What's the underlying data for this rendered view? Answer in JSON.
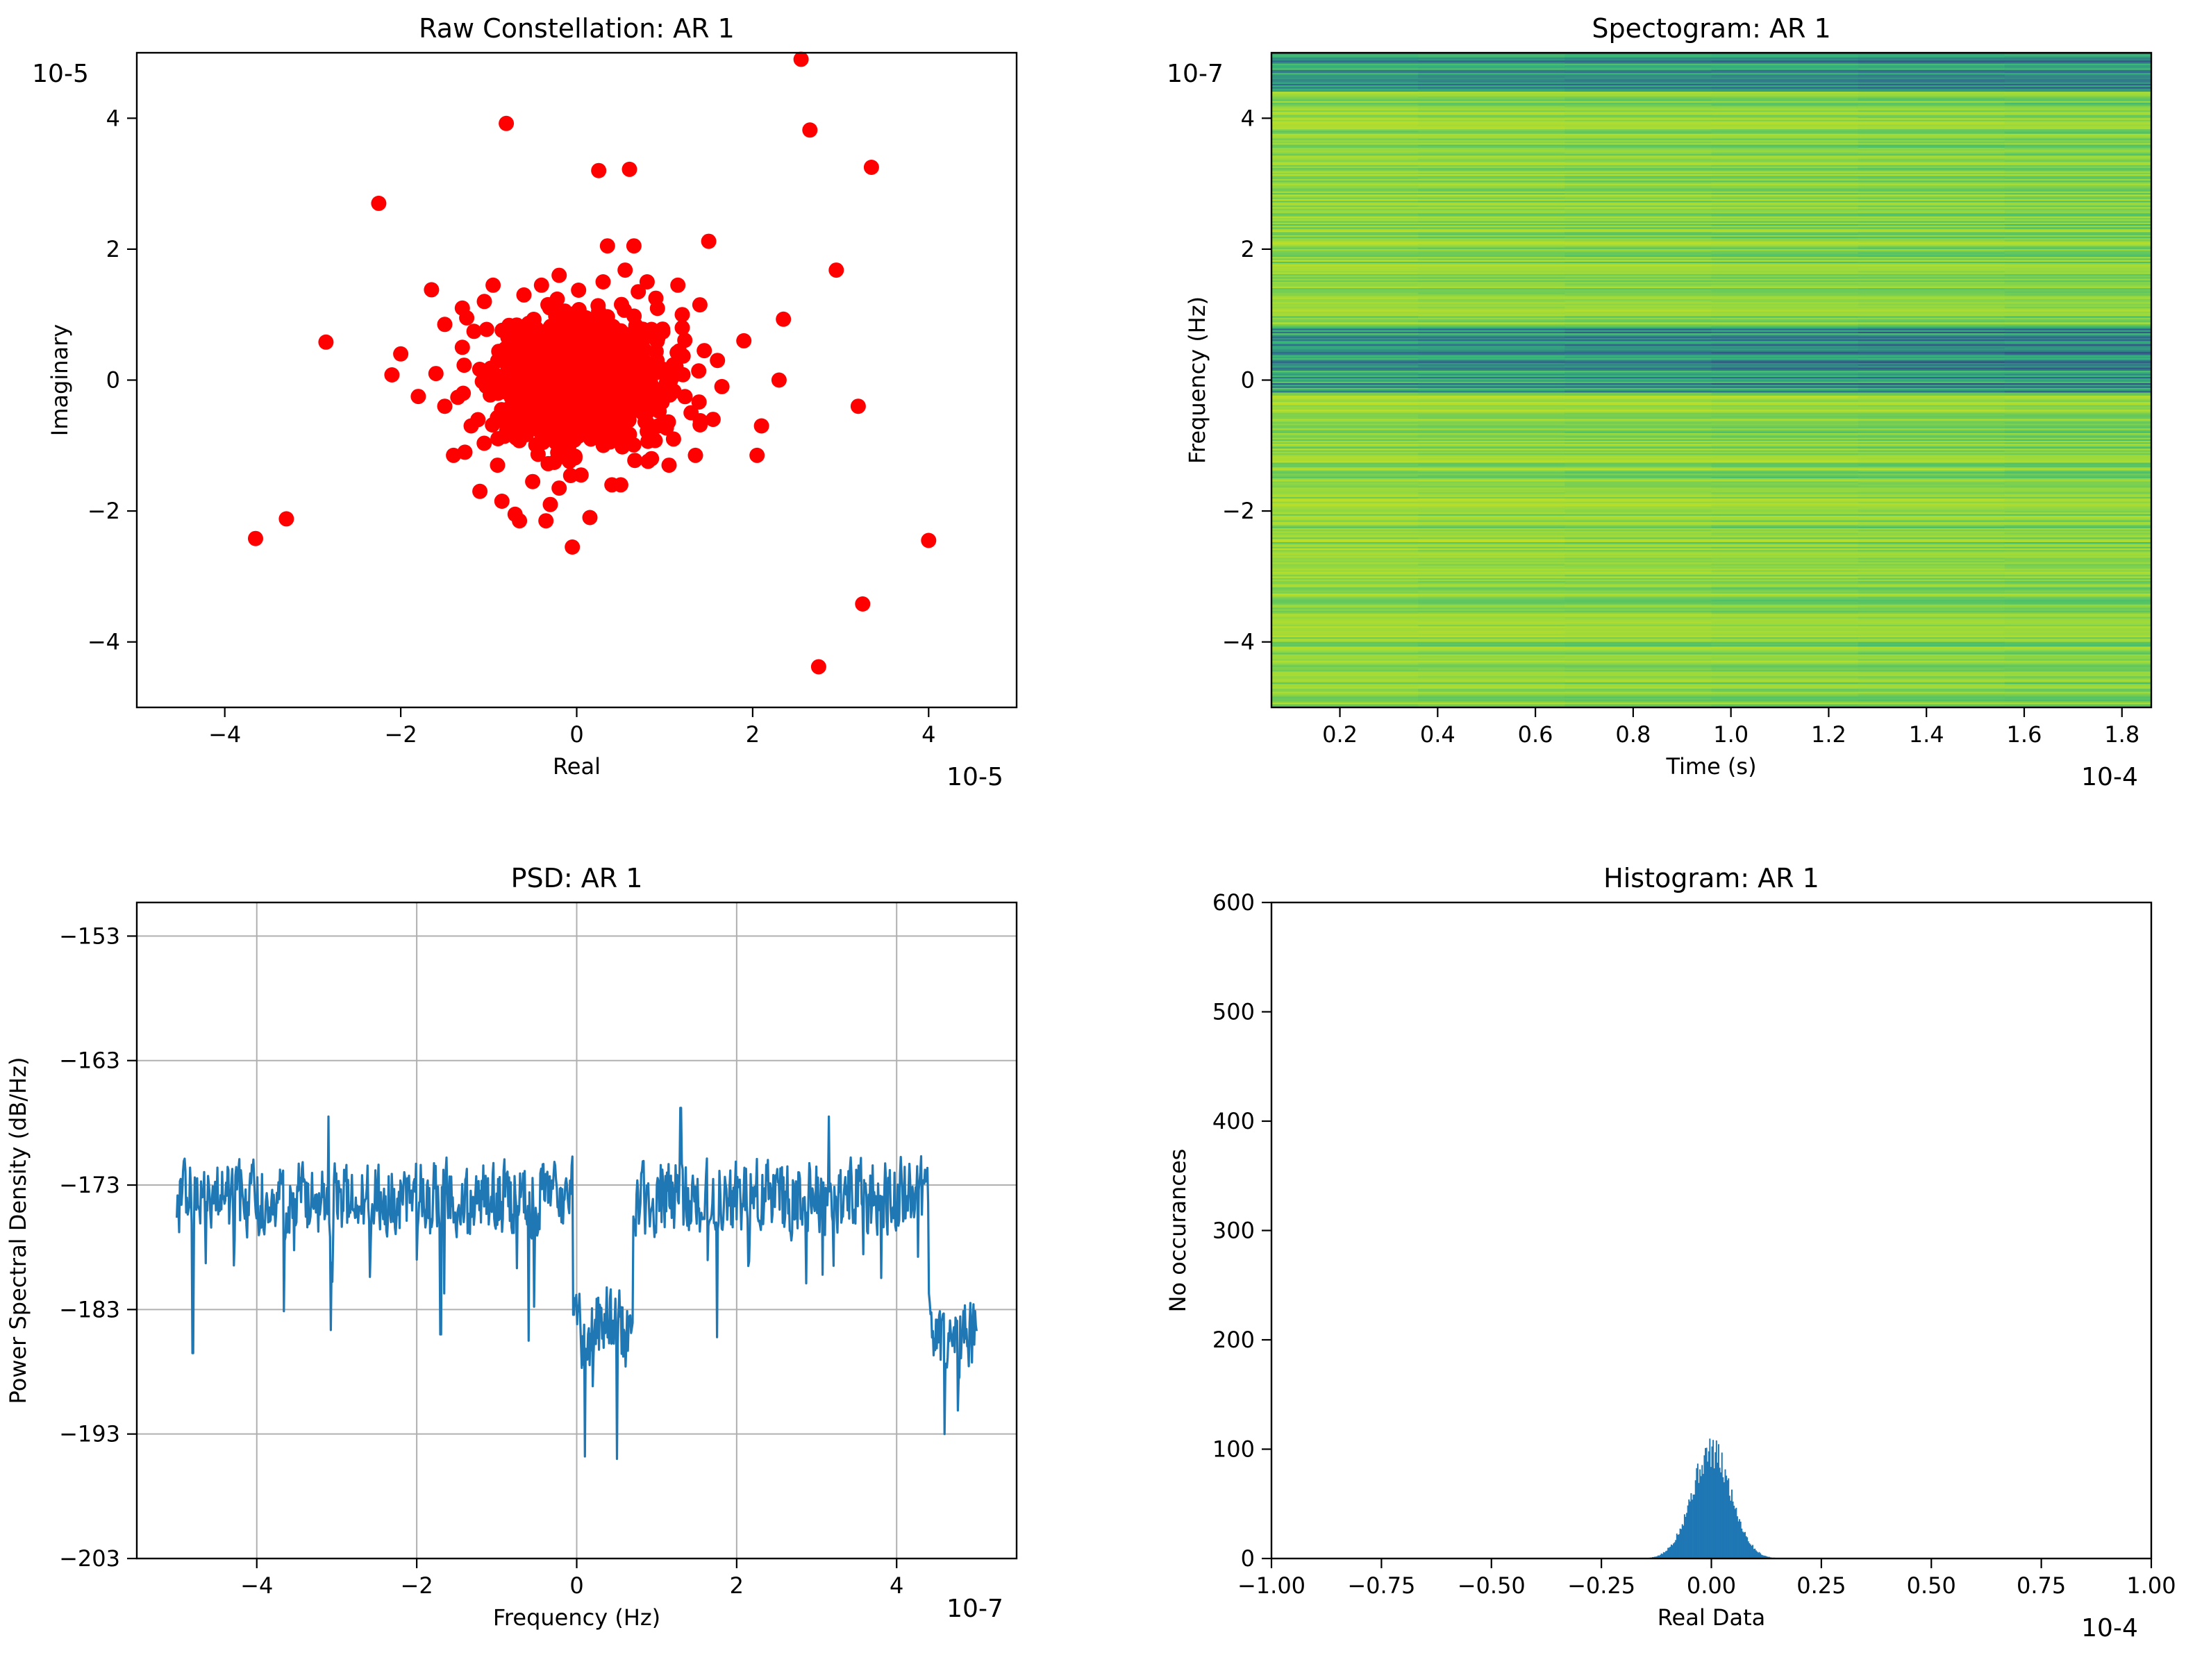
{
  "chart_data": [
    {
      "type": "scatter",
      "title": "Raw Constellation: AR 1",
      "xlabel": "Real",
      "ylabel": "Imaginary",
      "x_multiplier": "10-5",
      "y_multiplier": "10-5",
      "xlim": [
        -5,
        5
      ],
      "ylim": [
        -5,
        5
      ],
      "x_ticks": [
        -4,
        -2,
        0,
        2,
        4
      ],
      "y_ticks": [
        -4,
        -2,
        0,
        2,
        4
      ],
      "x_tick_labels": [
        "−4",
        "−2",
        "0",
        "2",
        "4"
      ],
      "y_tick_labels": [
        "−4",
        "−2",
        "0",
        "2",
        "4"
      ],
      "grid": false,
      "marker_color": "#ff0000",
      "points": [
        [
          2.55,
          4.9
        ],
        [
          -0.8,
          3.92
        ],
        [
          2.65,
          3.82
        ],
        [
          0.25,
          3.2
        ],
        [
          0.6,
          3.22
        ],
        [
          3.35,
          3.25
        ],
        [
          -2.25,
          2.7
        ],
        [
          2.95,
          1.68
        ],
        [
          1.5,
          2.12
        ],
        [
          0.35,
          2.05
        ],
        [
          0.65,
          2.05
        ],
        [
          0.55,
          1.68
        ],
        [
          0.8,
          1.5
        ],
        [
          -0.95,
          1.45
        ],
        [
          -1.65,
          1.38
        ],
        [
          1.15,
          1.45
        ],
        [
          -0.2,
          1.6
        ],
        [
          1.4,
          1.15
        ],
        [
          -2.85,
          0.58
        ],
        [
          -2.0,
          0.4
        ],
        [
          -2.1,
          0.08
        ],
        [
          -1.8,
          -0.25
        ],
        [
          -1.5,
          -0.4
        ],
        [
          -1.4,
          -1.15
        ],
        [
          -1.1,
          -1.7
        ],
        [
          -0.85,
          -1.85
        ],
        [
          -0.65,
          -2.15
        ],
        [
          -0.7,
          -2.05
        ],
        [
          -0.35,
          -2.15
        ],
        [
          -0.3,
          -1.9
        ],
        [
          -0.05,
          -2.55
        ],
        [
          0.15,
          -2.1
        ],
        [
          -0.2,
          -1.65
        ],
        [
          0.4,
          -1.6
        ],
        [
          0.85,
          -1.2
        ],
        [
          1.35,
          -1.15
        ],
        [
          2.05,
          -1.15
        ],
        [
          2.1,
          -0.7
        ],
        [
          1.55,
          -0.6
        ],
        [
          1.9,
          0.6
        ],
        [
          2.35,
          0.93
        ],
        [
          2.3,
          0.0
        ],
        [
          3.2,
          -0.4
        ],
        [
          4.0,
          -2.45
        ],
        [
          3.25,
          -3.42
        ],
        [
          2.75,
          -4.38
        ],
        [
          -3.65,
          -2.42
        ],
        [
          -3.3,
          -2.12
        ],
        [
          1.6,
          0.3
        ],
        [
          1.65,
          -0.1
        ],
        [
          -1.3,
          0.5
        ],
        [
          -1.5,
          0.85
        ],
        [
          -1.3,
          1.1
        ],
        [
          1.1,
          -0.9
        ],
        [
          0.9,
          1.25
        ],
        [
          -0.6,
          1.3
        ],
        [
          0.5,
          -1.6
        ],
        [
          -0.9,
          -1.3
        ],
        [
          1.2,
          0.8
        ],
        [
          1.3,
          -0.5
        ],
        [
          -1.6,
          0.1
        ],
        [
          -1.2,
          -0.7
        ],
        [
          0.3,
          1.5
        ],
        [
          -0.4,
          1.45
        ],
        [
          1.05,
          -1.3
        ],
        [
          -1.25,
          0.95
        ],
        [
          1.45,
          0.45
        ],
        [
          1.2,
          1.0
        ],
        [
          -1.05,
          1.2
        ],
        [
          0.05,
          -1.45
        ],
        [
          -0.5,
          -1.55
        ],
        [
          0.7,
          1.35
        ]
      ],
      "cluster": {
        "center": [
          0,
          0
        ],
        "sigma": 0.45,
        "count": 1400
      }
    },
    {
      "type": "heatmap",
      "title": "Spectogram: AR 1",
      "xlabel": "Time (s)",
      "ylabel": "Frequency (Hz)",
      "x_multiplier": "10-4",
      "y_multiplier": "10-7",
      "xlim": [
        0.06,
        1.86
      ],
      "ylim": [
        -5,
        5
      ],
      "x_ticks": [
        0.2,
        0.4,
        0.6,
        0.8,
        1.0,
        1.2,
        1.4,
        1.6,
        1.8
      ],
      "x_tick_labels": [
        "0.2",
        "0.4",
        "0.6",
        "0.8",
        "1.0",
        "1.2",
        "1.4",
        "1.6",
        "1.8"
      ],
      "y_ticks": [
        -4,
        -2,
        0,
        2,
        4
      ],
      "y_tick_labels": [
        "−4",
        "−2",
        "0",
        "2",
        "4"
      ],
      "colormap": [
        "#440154",
        "#31688e",
        "#35b779",
        "#90d743",
        "#c8e020"
      ],
      "power_profile": [
        {
          "freq_band": [
            4.4,
            5.0
          ],
          "level": "low"
        },
        {
          "freq_band": [
            -0.2,
            0.8
          ],
          "level": "low"
        },
        {
          "freq_band": [
            -5.0,
            -0.2
          ],
          "level": "high"
        },
        {
          "freq_band": [
            0.8,
            4.4
          ],
          "level": "high"
        }
      ],
      "grid": false
    },
    {
      "type": "line",
      "title": "PSD: AR 1",
      "xlabel": "Frequency (Hz)",
      "ylabel": "Power Spectral Density (dB/Hz)",
      "x_multiplier": "10-7",
      "xlim": [
        -5.5,
        5.5
      ],
      "ylim": [
        -203,
        -150.3
      ],
      "x_ticks": [
        -4,
        -2,
        0,
        2,
        4
      ],
      "x_tick_labels": [
        "−4",
        "−2",
        "0",
        "2",
        "4"
      ],
      "y_ticks": [
        -203,
        -193,
        -183,
        -173,
        -163,
        -153
      ],
      "y_tick_labels": [
        "−203",
        "−193",
        "−183",
        "−173",
        "−163",
        "−153"
      ],
      "grid": true,
      "line_color": "#1f77b4",
      "series": [
        {
          "x_range": [
            -5.0,
            5.0
          ],
          "segments": [
            {
              "x": [
                -5.0,
                -0.05
              ],
              "mean": -174.0,
              "spread": 4.0
            },
            {
              "x": [
                -0.05,
                0.7
              ],
              "mean": -184.5,
              "spread": 4.5
            },
            {
              "x": [
                0.7,
                4.4
              ],
              "mean": -174.0,
              "spread": 4.2
            },
            {
              "x": [
                4.4,
                5.0
              ],
              "mean": -185.0,
              "spread": 3.8
            }
          ],
          "extremes": [
            {
              "x": 1.3,
              "y": -166.8
            },
            {
              "x": -3.1,
              "y": -167.5
            },
            {
              "x": 3.15,
              "y": -167.5
            },
            {
              "x": -4.8,
              "y": -186.5
            },
            {
              "x": 0.1,
              "y": -194.8
            },
            {
              "x": 0.5,
              "y": -195.0
            },
            {
              "x": 4.6,
              "y": -193.0
            },
            {
              "x": -1.7,
              "y": -185.0
            },
            {
              "x": -0.6,
              "y": -185.5
            }
          ]
        }
      ]
    },
    {
      "type": "bar",
      "subtype": "histogram",
      "title": "Histogram: AR 1",
      "xlabel": "Real Data",
      "ylabel": "No occurances",
      "x_multiplier": "10-4",
      "xlim": [
        -1.0,
        1.0
      ],
      "ylim": [
        0,
        600
      ],
      "x_ticks": [
        -1.0,
        -0.75,
        -0.5,
        -0.25,
        0.0,
        0.25,
        0.5,
        0.75,
        1.0
      ],
      "x_tick_labels": [
        "−1.00",
        "−0.75",
        "−0.50",
        "−0.25",
        "0.00",
        "0.25",
        "0.50",
        "0.75",
        "1.00"
      ],
      "y_ticks": [
        0,
        100,
        200,
        300,
        400,
        500,
        600
      ],
      "y_tick_labels": [
        "0",
        "100",
        "200",
        "300",
        "400",
        "500",
        "600"
      ],
      "grid": false,
      "bar_color": "#1f77b4",
      "distribution": {
        "center": 0.0,
        "sigma": 0.045,
        "peak": 100,
        "range": [
          -0.2,
          0.2
        ]
      }
    }
  ]
}
